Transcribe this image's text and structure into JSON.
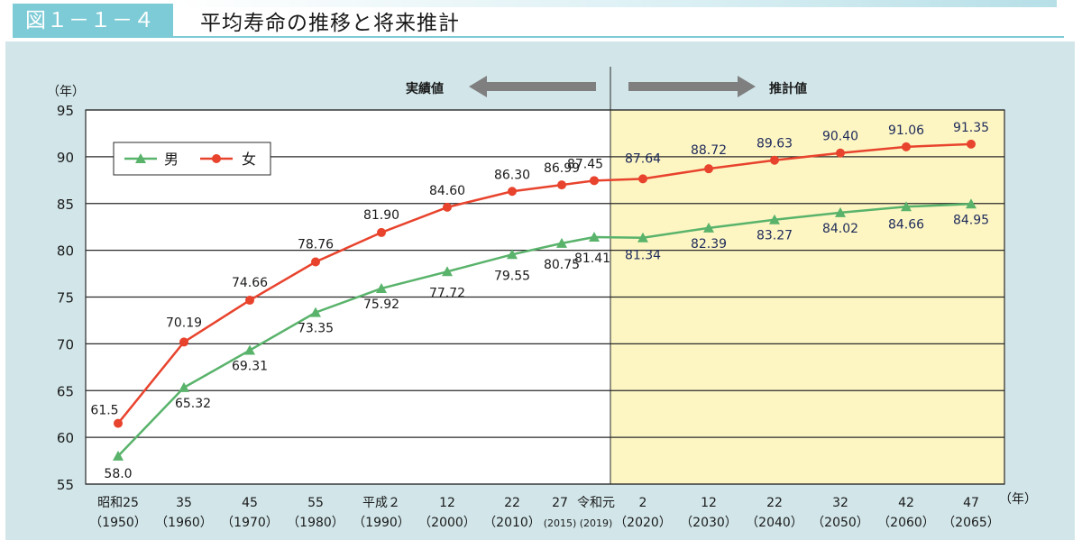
{
  "header": {
    "figure_number": "図１－１－４",
    "title": "平均寿命の推移と将来推計"
  },
  "annotations": {
    "actual": "実績値",
    "projected": "推計値"
  },
  "colors": {
    "male": "#59b36b",
    "female": "#e8432d",
    "projection_bg": "#fdf6c3",
    "panel_bg": "#d2e6ea",
    "header_accent": "#7ccbd6",
    "arrow": "#7f7f7f"
  },
  "chart_data": {
    "type": "line",
    "ylabel": "（年）",
    "xlabel": "（年）",
    "ylim": [
      55,
      95
    ],
    "yticks": [
      55,
      60,
      65,
      70,
      75,
      80,
      85,
      90,
      95
    ],
    "grid": true,
    "legend_position": "top-left",
    "categories": [
      {
        "top": "昭和25",
        "bottom": "（1950）"
      },
      {
        "top": "35",
        "bottom": "（1960）"
      },
      {
        "top": "45",
        "bottom": "（1970）"
      },
      {
        "top": "55",
        "bottom": "（1980）"
      },
      {
        "top": "平成２",
        "bottom": "（1990）"
      },
      {
        "top": "12",
        "bottom": "（2000）"
      },
      {
        "top": "22",
        "bottom": "（2010）"
      },
      {
        "top": "27",
        "bottom": "(2015)"
      },
      {
        "top": "令和元",
        "bottom": "(2019)"
      },
      {
        "top": "2",
        "bottom": "（2020）"
      },
      {
        "top": "12",
        "bottom": "（2030）"
      },
      {
        "top": "22",
        "bottom": "（2040）"
      },
      {
        "top": "32",
        "bottom": "（2050）"
      },
      {
        "top": "42",
        "bottom": "（2060）"
      },
      {
        "top": "47",
        "bottom": "（2065）"
      }
    ],
    "series": [
      {
        "name": "男",
        "marker": "triangle",
        "values": [
          58.0,
          65.32,
          69.31,
          73.35,
          75.92,
          77.72,
          79.55,
          80.75,
          81.41,
          81.34,
          82.39,
          83.27,
          84.02,
          84.66,
          84.95
        ],
        "labels": [
          "58.0",
          "65.32",
          "69.31",
          "73.35",
          "75.92",
          "77.72",
          "79.55",
          "80.75",
          "81.41",
          "81.34",
          "82.39",
          "83.27",
          "84.02",
          "84.66",
          "84.95"
        ]
      },
      {
        "name": "女",
        "marker": "circle",
        "values": [
          61.5,
          70.19,
          74.66,
          78.76,
          81.9,
          84.6,
          86.3,
          86.99,
          87.45,
          87.64,
          88.72,
          89.63,
          90.4,
          91.06,
          91.35
        ],
        "labels": [
          "61.5",
          "70.19",
          "74.66",
          "78.76",
          "81.90",
          "84.60",
          "86.30",
          "86.99",
          "87.45",
          "87.64",
          "88.72",
          "89.63",
          "90.40",
          "91.06",
          "91.35"
        ]
      }
    ],
    "projection_start_index": 9
  }
}
